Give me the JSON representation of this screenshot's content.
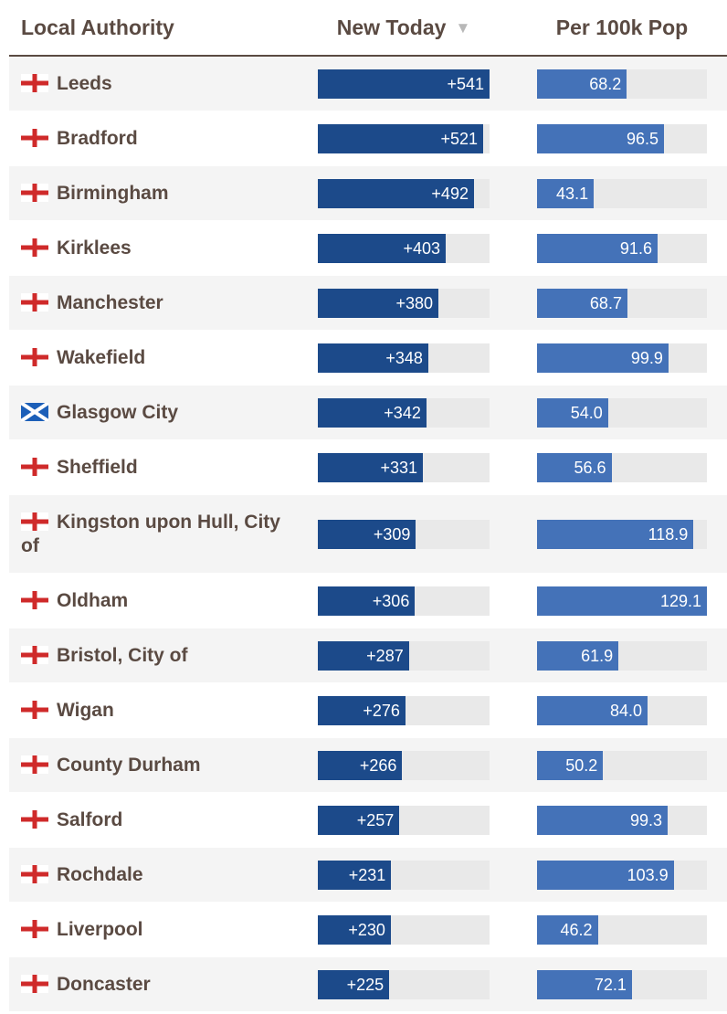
{
  "chart_data": {
    "type": "table",
    "title": "",
    "columns": [
      "Local Authority",
      "New Today",
      "Per 100k Pop"
    ],
    "sort_column": "New Today",
    "sort_direction": "descending",
    "max_new_today": 541,
    "max_per_100k": 129.1,
    "rows": [
      {
        "name": "Leeds",
        "nation": "england",
        "new_today": "+541",
        "new_value": 541,
        "per_100k": "68.2",
        "per_value": 68.2
      },
      {
        "name": "Bradford",
        "nation": "england",
        "new_today": "+521",
        "new_value": 521,
        "per_100k": "96.5",
        "per_value": 96.5
      },
      {
        "name": "Birmingham",
        "nation": "england",
        "new_today": "+492",
        "new_value": 492,
        "per_100k": "43.1",
        "per_value": 43.1
      },
      {
        "name": "Kirklees",
        "nation": "england",
        "new_today": "+403",
        "new_value": 403,
        "per_100k": "91.6",
        "per_value": 91.6
      },
      {
        "name": "Manchester",
        "nation": "england",
        "new_today": "+380",
        "new_value": 380,
        "per_100k": "68.7",
        "per_value": 68.7
      },
      {
        "name": "Wakefield",
        "nation": "england",
        "new_today": "+348",
        "new_value": 348,
        "per_100k": "99.9",
        "per_value": 99.9
      },
      {
        "name": "Glasgow City",
        "nation": "scotland",
        "new_today": "+342",
        "new_value": 342,
        "per_100k": "54.0",
        "per_value": 54.0
      },
      {
        "name": "Sheffield",
        "nation": "england",
        "new_today": "+331",
        "new_value": 331,
        "per_100k": "56.6",
        "per_value": 56.6
      },
      {
        "name": "Kingston upon Hull, City of",
        "nation": "england",
        "new_today": "+309",
        "new_value": 309,
        "per_100k": "118.9",
        "per_value": 118.9
      },
      {
        "name": "Oldham",
        "nation": "england",
        "new_today": "+306",
        "new_value": 306,
        "per_100k": "129.1",
        "per_value": 129.1
      },
      {
        "name": "Bristol, City of",
        "nation": "england",
        "new_today": "+287",
        "new_value": 287,
        "per_100k": "61.9",
        "per_value": 61.9
      },
      {
        "name": "Wigan",
        "nation": "england",
        "new_today": "+276",
        "new_value": 276,
        "per_100k": "84.0",
        "per_value": 84.0
      },
      {
        "name": "County Durham",
        "nation": "england",
        "new_today": "+266",
        "new_value": 266,
        "per_100k": "50.2",
        "per_value": 50.2
      },
      {
        "name": "Salford",
        "nation": "england",
        "new_today": "+257",
        "new_value": 257,
        "per_100k": "99.3",
        "per_value": 99.3
      },
      {
        "name": "Rochdale",
        "nation": "england",
        "new_today": "+231",
        "new_value": 231,
        "per_100k": "103.9",
        "per_value": 103.9
      },
      {
        "name": "Liverpool",
        "nation": "england",
        "new_today": "+230",
        "new_value": 230,
        "per_100k": "46.2",
        "per_value": 46.2
      },
      {
        "name": "Doncaster",
        "nation": "england",
        "new_today": "+225",
        "new_value": 225,
        "per_100k": "72.1",
        "per_value": 72.1
      }
    ]
  },
  "header": {
    "local_authority": "Local Authority",
    "new_today": "New Today",
    "per_100k": "Per 100k Pop",
    "sort_icon": "sort-descending-icon"
  },
  "colors": {
    "text": "#5a4a42",
    "new_bar": "#1c4a8a",
    "per_bar": "#4472b8",
    "track": "#e9e9e9",
    "row_alt": "#f4f4f4",
    "england_cross": "#cf2a2a",
    "scotland_blue": "#1c5fb8"
  }
}
